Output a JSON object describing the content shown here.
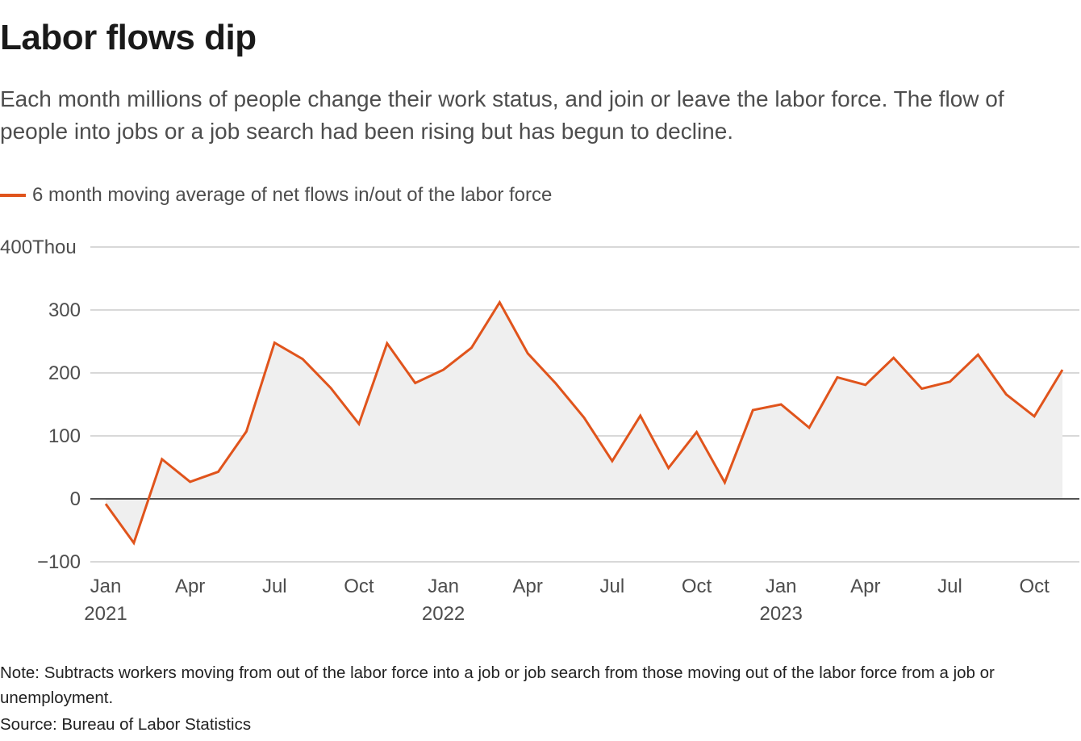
{
  "title": "Labor flows dip",
  "subtitle": "Each month millions of people change their work status, and join or leave the labor force. The flow of people into jobs or a job search had been rising but has begun to decline.",
  "colors": {
    "line": "#e0541c",
    "area": "#efefef",
    "grid": "#cccccc",
    "zero": "#1a1a1a"
  },
  "chart_data": {
    "type": "area",
    "title": "Labor flows dip",
    "ylabel": "",
    "xlabel": "",
    "ylim": [
      -100,
      400
    ],
    "y_ticks": [
      {
        "value": 400,
        "label": "400Thou"
      },
      {
        "value": 300,
        "label": "300"
      },
      {
        "value": 200,
        "label": "200"
      },
      {
        "value": 100,
        "label": "100"
      },
      {
        "value": 0,
        "label": "0"
      },
      {
        "value": -100,
        "label": "−100"
      }
    ],
    "x_ticks": [
      {
        "x": "2021-01",
        "label": "Jan",
        "sublabel": "2021"
      },
      {
        "x": "2021-04",
        "label": "Apr",
        "sublabel": ""
      },
      {
        "x": "2021-07",
        "label": "Jul",
        "sublabel": ""
      },
      {
        "x": "2021-10",
        "label": "Oct",
        "sublabel": ""
      },
      {
        "x": "2022-01",
        "label": "Jan",
        "sublabel": "2022"
      },
      {
        "x": "2022-04",
        "label": "Apr",
        "sublabel": ""
      },
      {
        "x": "2022-07",
        "label": "Jul",
        "sublabel": ""
      },
      {
        "x": "2022-10",
        "label": "Oct",
        "sublabel": ""
      },
      {
        "x": "2023-01",
        "label": "Jan",
        "sublabel": "2023"
      },
      {
        "x": "2023-04",
        "label": "Apr",
        "sublabel": ""
      },
      {
        "x": "2023-07",
        "label": "Jul",
        "sublabel": ""
      },
      {
        "x": "2023-10",
        "label": "Oct",
        "sublabel": ""
      }
    ],
    "grid": true,
    "legend_position": "top-left",
    "series": [
      {
        "name": "6 month moving average of net flows in/out of the labor force",
        "x": [
          "2021-01",
          "2021-02",
          "2021-03",
          "2021-04",
          "2021-05",
          "2021-06",
          "2021-07",
          "2021-08",
          "2021-09",
          "2021-10",
          "2021-11",
          "2021-12",
          "2022-01",
          "2022-02",
          "2022-03",
          "2022-04",
          "2022-05",
          "2022-06",
          "2022-07",
          "2022-08",
          "2022-09",
          "2022-10",
          "2022-11",
          "2022-12",
          "2023-01",
          "2023-02",
          "2023-03",
          "2023-04",
          "2023-05",
          "2023-06",
          "2023-07",
          "2023-08",
          "2023-09",
          "2023-10",
          "2023-11"
        ],
        "values": [
          -8,
          -70,
          63,
          27,
          43,
          107,
          248,
          222,
          176,
          119,
          247,
          184,
          205,
          240,
          312,
          231,
          183,
          129,
          60,
          132,
          49,
          106,
          26,
          141,
          150,
          113,
          193,
          181,
          224,
          175,
          186,
          229,
          166,
          131,
          205
        ]
      }
    ]
  },
  "footer": {
    "note": "Note: Subtracts workers moving from out of the labor force into a job or job search from those moving out of the labor force from a job or unemployment.",
    "source": "Source: Bureau of Labor Statistics"
  }
}
